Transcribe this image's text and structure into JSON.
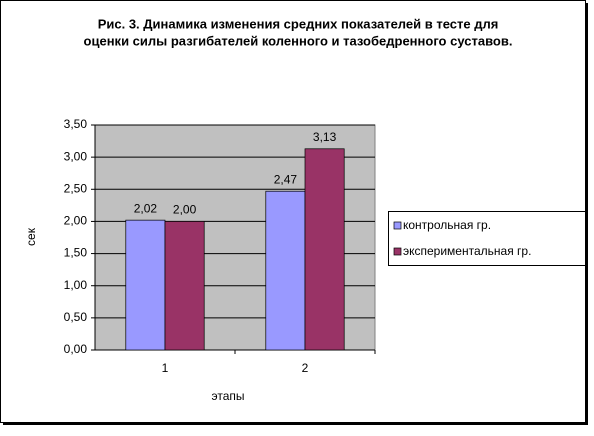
{
  "chart_data": {
    "type": "bar",
    "title": [
      "Рис. 3. Динамика изменения  средних  показателей  в тесте для",
      "оценки силы разгибателей коленного  и тазобедренного  суставов."
    ],
    "x_label": "этапы",
    "y_label": "сек",
    "categories": [
      "1",
      "2"
    ],
    "series": [
      {
        "name": "контрольная гр.",
        "color": "#9999ff",
        "values": [
          2.02,
          2.47
        ],
        "value_labels": [
          "2,02",
          "2,47"
        ]
      },
      {
        "name": "экспериментальная  гр.",
        "color": "#993366",
        "values": [
          2.0,
          3.13
        ],
        "value_labels": [
          "2,00",
          "3,13"
        ]
      }
    ],
    "ylim": [
      0,
      3.5
    ],
    "yticks": [
      {
        "value": 0,
        "label": "0,00"
      },
      {
        "value": 0.5,
        "label": "0,50"
      },
      {
        "value": 1,
        "label": "1,00"
      },
      {
        "value": 1.5,
        "label": "1,50"
      },
      {
        "value": 2,
        "label": "2,00"
      },
      {
        "value": 2.5,
        "label": "2,50"
      },
      {
        "value": 3,
        "label": "3,00"
      },
      {
        "value": 3.5,
        "label": "3,50"
      }
    ],
    "grid": true,
    "legend": "right"
  }
}
